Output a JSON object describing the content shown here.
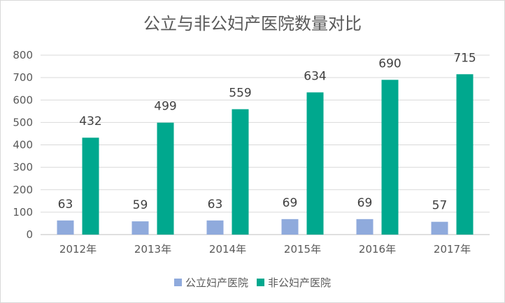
{
  "chart_data": {
    "type": "bar",
    "title": "公立与非公妇产医院数量对比",
    "categories": [
      "2012年",
      "2013年",
      "2014年",
      "2015年",
      "2016年",
      "2017年"
    ],
    "series": [
      {
        "name": "公立妇产医院",
        "values": [
          63,
          59,
          63,
          69,
          69,
          57
        ],
        "color": "#8faadc"
      },
      {
        "name": "非公妇产医院",
        "values": [
          432,
          499,
          559,
          634,
          690,
          715
        ],
        "color": "#00a88e"
      }
    ],
    "ylim": [
      0,
      800
    ],
    "yticks": [
      0,
      100,
      200,
      300,
      400,
      500,
      600,
      700,
      800
    ],
    "grid": true,
    "legend": "bottom"
  }
}
